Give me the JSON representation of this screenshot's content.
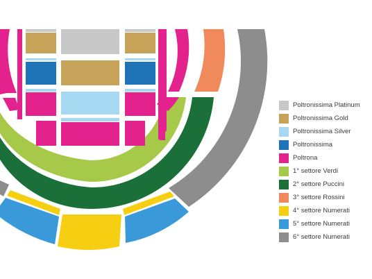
{
  "colors": {
    "platinum": "#c8c8c8",
    "gold": "#c6a358",
    "silver": "#a7d8f2",
    "poltronissima": "#1f73b7",
    "poltrona": "#e3228d",
    "verdi": "#a7c94a",
    "puccini": "#1a7038",
    "rossini": "#f08a5d",
    "numerati4": "#f7cf12",
    "numerati5": "#3a9ad9",
    "numerati6": "#8d8d8d"
  },
  "legend": [
    {
      "label": "Poltronissima Platinum",
      "color": "#c8c8c8"
    },
    {
      "label": "Poltronissima Gold",
      "color": "#c6a358"
    },
    {
      "label": "Poltronissima Silver",
      "color": "#a7d8f2"
    },
    {
      "label": "Poltronissima",
      "color": "#1f73b7"
    },
    {
      "label": "Poltrona",
      "color": "#e3228d"
    },
    {
      "label": "1° settore Verdi",
      "color": "#a7c94a"
    },
    {
      "label": "2° settore Puccini",
      "color": "#1a7038"
    },
    {
      "label": "3° settore Rossini",
      "color": "#f08a5d"
    },
    {
      "label": "4° settore Numerati",
      "color": "#f7cf12"
    },
    {
      "label": "5° settore Numerati",
      "color": "#3a9ad9"
    },
    {
      "label": "6° settore Numerati",
      "color": "#8d8d8d"
    }
  ]
}
